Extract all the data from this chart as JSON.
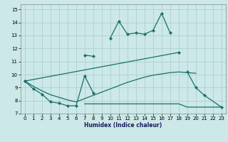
{
  "xlabel": "Humidex (Indice chaleur)",
  "bg_color": "#cce8e8",
  "grid_color": "#b0d0d0",
  "line_color": "#1a6e6a",
  "ylim": [
    7,
    15.4
  ],
  "xlim": [
    -0.5,
    23.5
  ],
  "yticks": [
    7,
    8,
    9,
    10,
    11,
    12,
    13,
    14,
    15
  ],
  "xticks": [
    0,
    1,
    2,
    3,
    4,
    5,
    6,
    7,
    8,
    9,
    10,
    11,
    12,
    13,
    14,
    15,
    16,
    17,
    18,
    19,
    20,
    21,
    22,
    23
  ],
  "curve1_x": [
    0,
    1,
    2,
    3,
    4,
    5,
    6,
    7,
    8,
    10,
    11,
    12,
    13,
    14,
    15,
    16,
    17,
    19,
    20,
    21,
    23
  ],
  "curve1_y": [
    9.5,
    8.9,
    8.5,
    7.9,
    7.8,
    7.6,
    7.6,
    9.9,
    8.6,
    12.8,
    14.1,
    13.1,
    13.2,
    13.1,
    13.4,
    14.7,
    13.2,
    10.2,
    9.0,
    8.4,
    7.5
  ],
  "curve1_seg_breaks": [
    8,
    17
  ],
  "curve2_x": [
    7,
    8
  ],
  "curve2_y": [
    11.5,
    11.4
  ],
  "curve3_x": [
    0,
    18
  ],
  "curve3_y": [
    9.5,
    11.7
  ],
  "curve4_x": [
    0,
    1,
    2,
    3,
    4,
    5,
    6,
    7,
    8,
    9,
    10,
    11,
    12,
    13,
    14,
    15,
    16,
    17,
    18,
    19,
    20
  ],
  "curve4_y": [
    9.5,
    9.1,
    8.75,
    8.45,
    8.25,
    8.05,
    7.9,
    8.15,
    8.4,
    8.65,
    8.9,
    9.15,
    9.4,
    9.6,
    9.8,
    9.95,
    10.05,
    10.15,
    10.2,
    10.15,
    10.1
  ],
  "curve5_x": [
    7,
    8,
    9,
    10,
    11,
    12,
    13,
    14,
    15,
    16,
    17,
    18,
    19,
    23
  ],
  "curve5_y": [
    7.75,
    7.75,
    7.75,
    7.75,
    7.75,
    7.75,
    7.75,
    7.75,
    7.75,
    7.75,
    7.75,
    7.75,
    7.5,
    7.5
  ]
}
